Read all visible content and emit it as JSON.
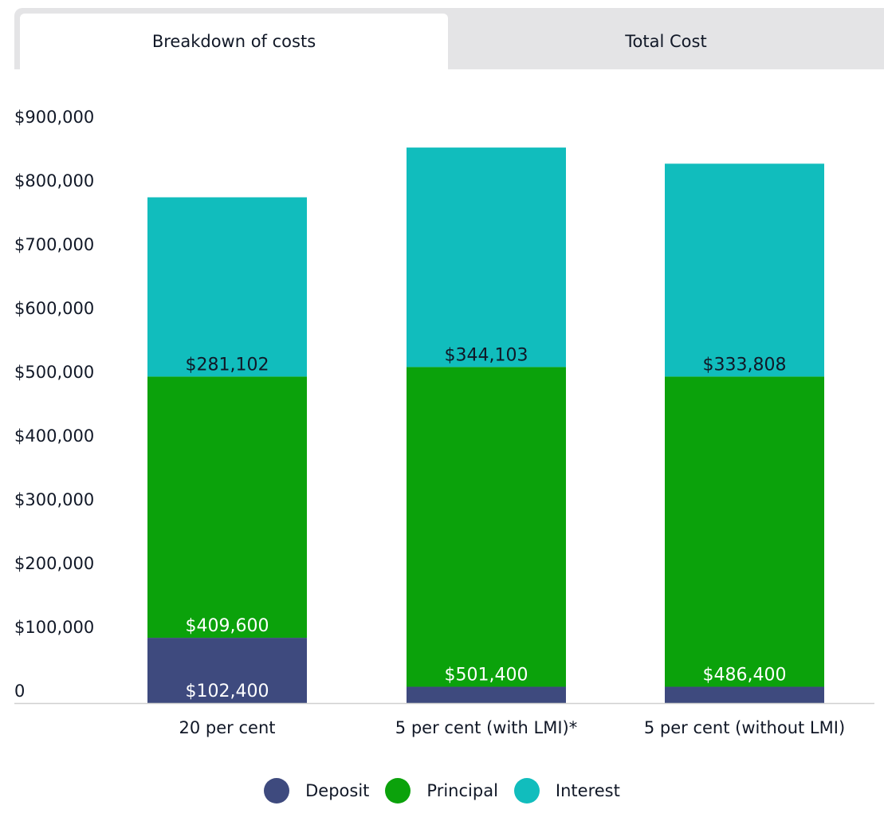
{
  "tabs": [
    {
      "label": "Breakdown of costs",
      "active": true
    },
    {
      "label": "Total Cost",
      "active": false
    }
  ],
  "colors": {
    "deposit": "#3e4a7e",
    "principal": "#0ba20b",
    "interest": "#11bdbd",
    "axis": "#d0d0d0",
    "text_dark": "#111827",
    "text_light": "#ffffff"
  },
  "chart_data": {
    "type": "bar",
    "stacked": true,
    "title": "",
    "xlabel": "",
    "ylabel": "",
    "ylim": [
      0,
      900000
    ],
    "grid": false,
    "legend_position": "bottom",
    "categories": [
      "20 per cent",
      "5 per cent (with LMI)*",
      "5 per cent (without LMI)"
    ],
    "yticks": [
      0,
      100000,
      200000,
      300000,
      400000,
      500000,
      600000,
      700000,
      800000,
      900000
    ],
    "ytick_labels": [
      "0",
      "$100,000",
      "$200,000",
      "$300,000",
      "$400,000",
      "$500,000",
      "$600,000",
      "$700,000",
      "$800,000",
      "$900,000"
    ],
    "series": [
      {
        "name": "Deposit",
        "key": "deposit",
        "values": [
          102400,
          25600,
          25600
        ],
        "labels": [
          "$102,400",
          "",
          ""
        ]
      },
      {
        "name": "Principal",
        "key": "principal",
        "values": [
          409600,
          501400,
          486400
        ],
        "labels": [
          "$409,600",
          "$501,400",
          "$486,400"
        ]
      },
      {
        "name": "Interest",
        "key": "interest",
        "values": [
          281102,
          344103,
          333808
        ],
        "labels": [
          "$281,102",
          "$344,103",
          "$333,808"
        ]
      }
    ]
  }
}
